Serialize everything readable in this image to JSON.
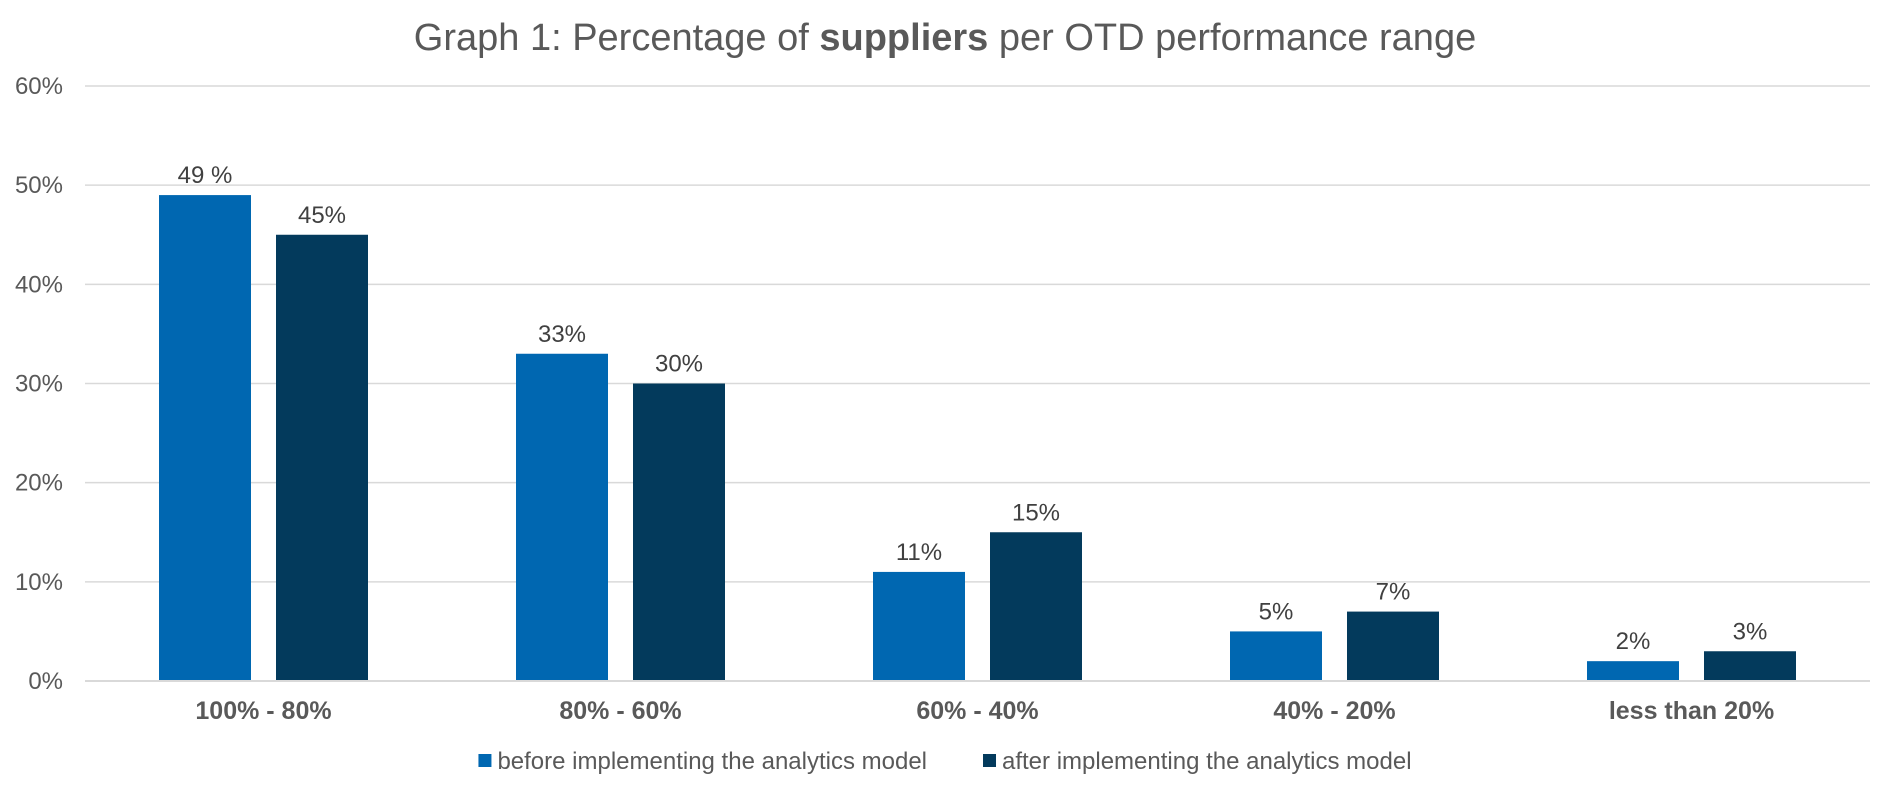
{
  "chart_data": {
    "type": "bar",
    "title": {
      "prefix": "Graph 1: Percentage of ",
      "bold": "suppliers",
      "suffix": " per OTD performance range"
    },
    "categories": [
      "100% - 80%",
      "80% - 60%",
      "60% - 40%",
      "40% - 20%",
      "less than 20%"
    ],
    "series": [
      {
        "name": "before implementing the analytics model",
        "values": [
          49,
          33,
          11,
          5,
          2
        ],
        "labels": [
          "49 %",
          "33%",
          "11%",
          "5%",
          "2%"
        ],
        "color": "#0067b1"
      },
      {
        "name": "after implementing the analytics model",
        "values": [
          45,
          30,
          15,
          7,
          3
        ],
        "labels": [
          "45%",
          "30%",
          "15%",
          "7%",
          "3%"
        ],
        "color": "#033a5c"
      }
    ],
    "y_ticks": [
      0,
      10,
      20,
      30,
      40,
      50,
      60
    ],
    "y_tick_labels": [
      "0%",
      "10%",
      "20%",
      "30%",
      "40%",
      "50%",
      "60%"
    ],
    "ylim": [
      0,
      60
    ],
    "xlabel": "",
    "ylabel": "",
    "grid": true,
    "legend_position": "bottom"
  }
}
